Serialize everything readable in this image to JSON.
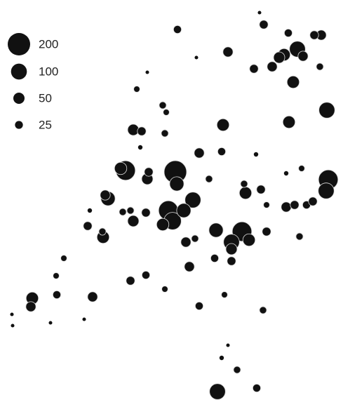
{
  "chart_data": {
    "type": "bubble",
    "color": "#111111",
    "xlim": [
      0,
      489
    ],
    "ylim": [
      0,
      570
    ],
    "legend": {
      "sizes": [
        200,
        100,
        50,
        25
      ]
    },
    "x": [
      370,
      376,
      253,
      411,
      458,
      448,
      424,
      405,
      398,
      432,
      325,
      388,
      362,
      418,
      456,
      466,
      412,
      318,
      195,
      232,
      237,
      190,
      202,
      235,
      179,
      172,
      250,
      252,
      210,
      212,
      284,
      316,
      298,
      468,
      465,
      350,
      372,
      348,
      275,
      154,
      150,
      240,
      246,
      262,
      232,
      208,
      175,
      190,
      186,
      125,
      147,
      146,
      308,
      345,
      355,
      330,
      380,
      265,
      278,
      408,
      420,
      437,
      446,
      427,
      330,
      330,
      306,
      270,
      186,
      208,
      132,
      81,
      46,
      44,
      284,
      375,
      320,
      310,
      366,
      338,
      235,
      80,
      91,
      17,
      18,
      72,
      120,
      128,
      200,
      210,
      280,
      365,
      408,
      430,
      380,
      316,
      325
    ],
    "y": [
      552,
      535,
      528,
      523,
      520,
      520,
      500,
      492,
      488,
      490,
      496,
      475,
      472,
      453,
      475,
      413,
      396,
      392,
      443,
      420,
      410,
      385,
      383,
      380,
      327,
      330,
      325,
      308,
      315,
      325,
      352,
      354,
      315,
      314,
      298,
      295,
      300,
      308,
      285,
      287,
      292,
      270,
      255,
      270,
      250,
      267,
      268,
      255,
      270,
      248,
      232,
      240,
      242,
      240,
      228,
      225,
      240,
      225,
      230,
      275,
      278,
      278,
      283,
      233,
      215,
      198,
      202,
      190,
      170,
      178,
      147,
      150,
      145,
      133,
      134,
      128,
      150,
      12,
      17,
      43,
      158,
      177,
      202,
      122,
      106,
      110,
      115,
      270,
      360,
      467,
      488,
      350,
      323,
      330,
      278,
      60,
      78
    ],
    "sizes": [
      5,
      30,
      25,
      25,
      40,
      30,
      100,
      60,
      50,
      40,
      40,
      40,
      30,
      60,
      20,
      100,
      60,
      60,
      15,
      20,
      15,
      50,
      30,
      20,
      150,
      60,
      200,
      80,
      50,
      30,
      40,
      25,
      20,
      150,
      100,
      60,
      30,
      20,
      100,
      80,
      40,
      150,
      120,
      80,
      60,
      30,
      20,
      50,
      20,
      30,
      60,
      20,
      80,
      150,
      60,
      100,
      30,
      40,
      20,
      40,
      30,
      25,
      30,
      20,
      50,
      30,
      25,
      40,
      30,
      25,
      40,
      25,
      60,
      40,
      25,
      20,
      15,
      100,
      25,
      20,
      15,
      15,
      15,
      5,
      5,
      5,
      5,
      8,
      8,
      5,
      5,
      8,
      8,
      15,
      15,
      8,
      5
    ]
  }
}
